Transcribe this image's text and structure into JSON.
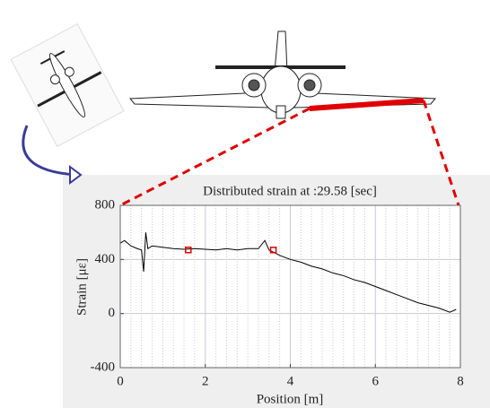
{
  "chart_data": {
    "type": "line",
    "title": "Distributed strain at :29.58 [sec]",
    "xlabel": "Position [m]",
    "ylabel": "Strain [με]",
    "xlim": [
      0,
      8
    ],
    "ylim": [
      -400,
      800
    ],
    "xticks": [
      0,
      2,
      4,
      6,
      8
    ],
    "yticks": [
      -400,
      0,
      400,
      800
    ],
    "xminorticks": [
      0.25,
      0.5,
      0.75,
      1,
      1.25,
      1.5,
      1.75,
      2.25,
      2.5,
      2.75,
      3,
      3.25,
      3.5,
      3.75,
      4.25,
      4.5,
      4.75,
      5,
      5.25,
      5.5,
      5.75,
      6.25,
      6.5,
      6.75,
      7,
      7.25,
      7.5,
      7.75
    ],
    "grid": true,
    "series": [
      {
        "color": "#000000",
        "x": [
          0,
          0.1,
          0.25,
          0.4,
          0.5,
          0.55,
          0.6,
          0.65,
          0.75,
          1.0,
          1.25,
          1.5,
          1.75,
          2.0,
          2.25,
          2.5,
          2.75,
          3.0,
          3.25,
          3.4,
          3.5,
          3.75,
          4.0,
          4.25,
          4.5,
          4.75,
          5.0,
          5.25,
          5.5,
          5.75,
          6.0,
          6.25,
          6.5,
          6.75,
          7.0,
          7.25,
          7.5,
          7.75,
          7.9
        ],
        "values": [
          520,
          540,
          500,
          480,
          470,
          310,
          600,
          480,
          500,
          490,
          480,
          475,
          480,
          475,
          470,
          480,
          470,
          480,
          480,
          540,
          470,
          430,
          400,
          380,
          350,
          330,
          300,
          280,
          250,
          230,
          200,
          170,
          140,
          110,
          80,
          60,
          40,
          10,
          30
        ]
      },
      {
        "color": "#e00000",
        "marker": "square",
        "x": [
          1.6,
          3.6
        ],
        "values": [
          470,
          470
        ]
      }
    ]
  }
}
